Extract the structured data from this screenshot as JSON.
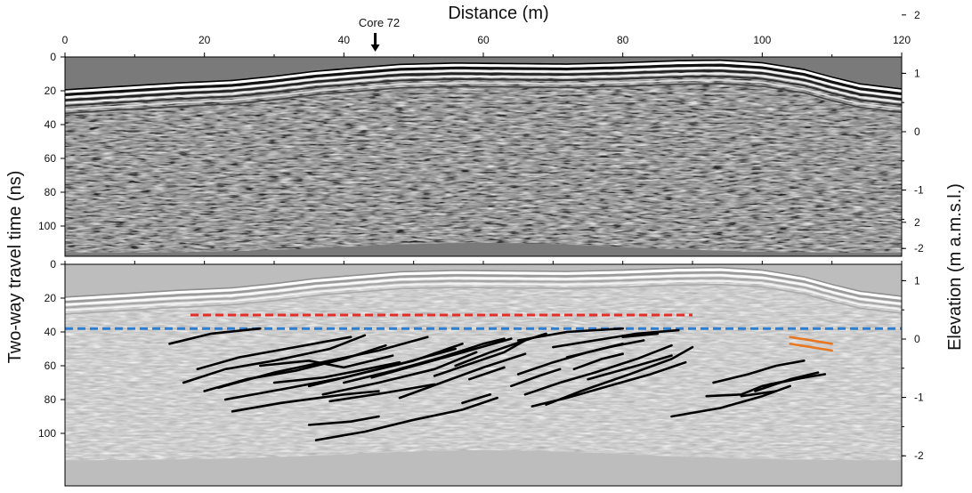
{
  "figure": {
    "x_axis_title": "Distance (m)",
    "left_axis_title": "Two-way travel time (ns)",
    "right_axis_title": "Elevation (m a.m.s.l.)",
    "core_label": "Core 72",
    "core_position_m": 44.5
  },
  "chart_data": {
    "type": "other",
    "xlim": [
      0,
      120
    ],
    "x_ticks": [
      "0",
      "20",
      "40",
      "60",
      "80",
      "100",
      "120"
    ],
    "time_range_ns": [
      0,
      120
    ],
    "time_ticks": [
      "0",
      "20",
      "40",
      "60",
      "80",
      "100"
    ],
    "elevation_range_m": [
      2.5,
      -2.2
    ],
    "elevation_ticks": [
      "2",
      "1",
      "0",
      "-1",
      "-2"
    ],
    "surface_profile": [
      [
        0,
        19
      ],
      [
        8,
        17
      ],
      [
        16,
        15
      ],
      [
        24,
        13.5
      ],
      [
        30,
        11
      ],
      [
        36,
        8
      ],
      [
        42,
        6
      ],
      [
        48,
        4
      ],
      [
        56,
        3.2
      ],
      [
        64,
        3.5
      ],
      [
        72,
        3.8
      ],
      [
        80,
        3
      ],
      [
        88,
        1.8
      ],
      [
        94,
        1.5
      ],
      [
        100,
        3
      ],
      [
        106,
        7
      ],
      [
        110,
        11.5
      ],
      [
        114,
        15.5
      ],
      [
        120,
        18.5
      ]
    ],
    "panels": [
      {
        "name": "unprocessed",
        "interpretation": false
      },
      {
        "name": "interpreted",
        "interpretation": true,
        "red_dashed_line": {
          "x": [
            18,
            90
          ],
          "t_ns": 30
        },
        "blue_dashed_line": {
          "x": [
            0,
            120
          ],
          "t_ns": 38
        },
        "orange_reflectors": [
          [
            [
              104,
              43
            ],
            [
              110,
              47
            ]
          ],
          [
            [
              104,
              47
            ],
            [
              110,
              51
            ]
          ]
        ],
        "black_reflectors": [
          [
            [
              15,
              47
            ],
            [
              21,
              41
            ],
            [
              28,
              38
            ]
          ],
          [
            [
              17,
              70
            ],
            [
              23,
              62
            ],
            [
              30,
              57
            ],
            [
              38,
              50
            ],
            [
              43,
              42
            ]
          ],
          [
            [
              19,
              62
            ],
            [
              25,
              55
            ],
            [
              33,
              49
            ],
            [
              41,
              43
            ]
          ],
          [
            [
              20,
              75
            ],
            [
              26,
              68
            ],
            [
              33,
              63
            ],
            [
              40,
              56
            ],
            [
              46,
              48
            ]
          ],
          [
            [
              22,
              73
            ],
            [
              30,
              64
            ],
            [
              38,
              57
            ],
            [
              45,
              51
            ],
            [
              52,
              43
            ]
          ],
          [
            [
              23,
              80
            ],
            [
              31,
              74
            ],
            [
              40,
              67
            ],
            [
              48,
              59
            ],
            [
              56,
              50
            ]
          ],
          [
            [
              24,
              87
            ],
            [
              31,
              82
            ],
            [
              40,
              77
            ],
            [
              45,
              75
            ]
          ],
          [
            [
              28,
              60
            ],
            [
              35,
              57
            ],
            [
              40,
              61
            ],
            [
              47,
              54
            ]
          ],
          [
            [
              30,
              70
            ],
            [
              37,
              67
            ],
            [
              42,
              63
            ],
            [
              48,
              58
            ]
          ],
          [
            [
              35,
              72
            ],
            [
              42,
              65
            ],
            [
              50,
              57
            ],
            [
              57,
              47
            ]
          ],
          [
            [
              37,
              77
            ],
            [
              45,
              70
            ],
            [
              53,
              62
            ],
            [
              59,
              52
            ]
          ],
          [
            [
              38,
              81
            ],
            [
              46,
              76
            ],
            [
              53,
              71
            ]
          ],
          [
            [
              35,
              95
            ],
            [
              41,
              93
            ],
            [
              45,
              90
            ]
          ],
          [
            [
              36,
              104
            ],
            [
              43,
              99
            ],
            [
              50,
              92
            ],
            [
              57,
              86
            ],
            [
              62,
              79
            ]
          ],
          [
            [
              40,
              70
            ],
            [
              47,
              63
            ],
            [
              54,
              55
            ],
            [
              60,
              47
            ],
            [
              63,
              44
            ]
          ],
          [
            [
              44,
              67
            ],
            [
              51,
              59
            ],
            [
              58,
              51
            ],
            [
              64,
              44
            ]
          ],
          [
            [
              48,
              79
            ],
            [
              54,
              70
            ],
            [
              60,
              61
            ],
            [
              66,
              53
            ]
          ],
          [
            [
              53,
              66
            ],
            [
              58,
              59
            ],
            [
              63,
              52
            ],
            [
              66,
              45
            ]
          ],
          [
            [
              56,
              60
            ],
            [
              61,
              52
            ],
            [
              66,
              45
            ],
            [
              69,
              41
            ]
          ],
          [
            [
              57,
              82
            ],
            [
              61,
              77
            ]
          ],
          [
            [
              58,
              68
            ],
            [
              63,
              61
            ]
          ],
          [
            [
              64,
              72
            ],
            [
              68,
              66
            ],
            [
              71,
              62
            ]
          ],
          [
            [
              65,
              65
            ],
            [
              70,
              58
            ],
            [
              75,
              52
            ],
            [
              80,
              47
            ]
          ],
          [
            [
              65,
              45
            ],
            [
              72,
              40
            ],
            [
              80,
              38
            ]
          ],
          [
            [
              66,
              77
            ],
            [
              71,
              70
            ],
            [
              76,
              64
            ],
            [
              82,
              56
            ],
            [
              87,
              48
            ]
          ],
          [
            [
              67,
              84
            ],
            [
              72,
              79
            ],
            [
              78,
              72
            ],
            [
              84,
              65
            ],
            [
              89,
              58
            ]
          ],
          [
            [
              69,
              83
            ],
            [
              74,
              75
            ],
            [
              81,
              65
            ],
            [
              87,
              56
            ],
            [
              90,
              49
            ]
          ],
          [
            [
              70,
              49
            ],
            [
              76,
              45
            ],
            [
              82,
              41
            ],
            [
              88,
              39
            ]
          ],
          [
            [
              72,
              55
            ],
            [
              78,
              49
            ],
            [
              83,
              45
            ]
          ],
          [
            [
              73,
              62
            ],
            [
              77,
              56
            ],
            [
              80,
              53
            ]
          ],
          [
            [
              75,
              68
            ],
            [
              82,
              60
            ],
            [
              87,
              54
            ]
          ],
          [
            [
              80,
              43
            ],
            [
              85,
              41
            ]
          ],
          [
            [
              87,
              90
            ],
            [
              94,
              85
            ],
            [
              100,
              78
            ],
            [
              104,
              72
            ]
          ],
          [
            [
              92,
              78
            ],
            [
              97,
              77
            ],
            [
              100,
              72
            ],
            [
              106,
              67
            ]
          ],
          [
            [
              93,
              70
            ],
            [
              98,
              65
            ],
            [
              102,
              60
            ],
            [
              106,
              57
            ]
          ],
          [
            [
              99,
              75
            ],
            [
              104,
              68
            ],
            [
              108,
              64
            ]
          ],
          [
            [
              101,
              71
            ],
            [
              106,
              67
            ],
            [
              109,
              65
            ]
          ],
          [
            [
              97,
              78
            ],
            [
              102,
              75
            ]
          ]
        ]
      }
    ]
  }
}
